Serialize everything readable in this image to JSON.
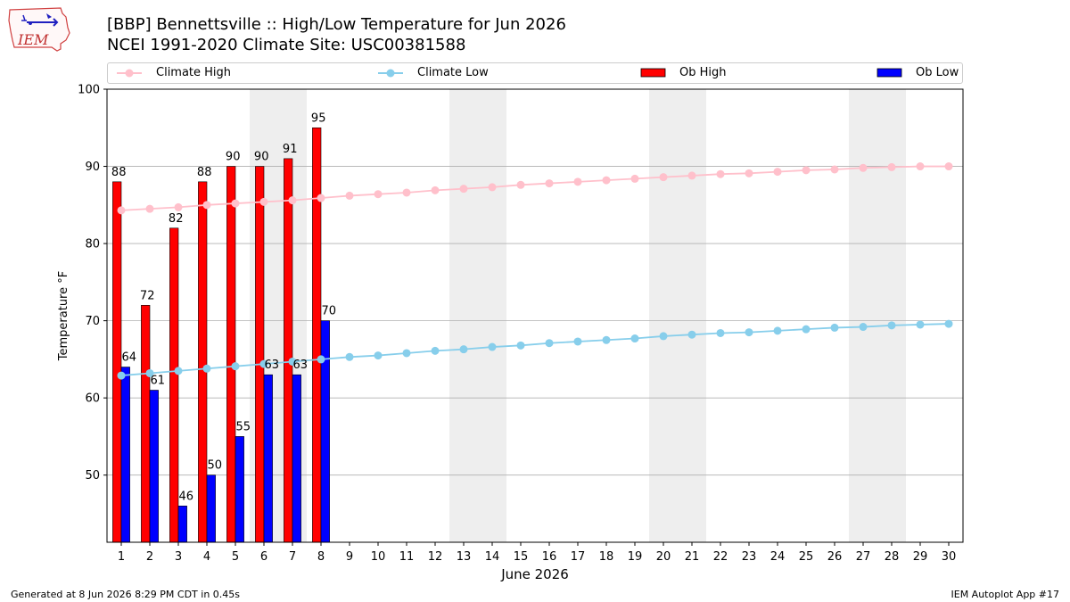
{
  "title": "[BBP] Bennettsville :: High/Low Temperature for Jun 2026",
  "subtitle": "NCEI 1991-2020 Climate Site: USC00381588",
  "logo_text": "IEM",
  "footer_left": "Generated at 8 Jun 2026 8:29 PM CDT in 0.45s",
  "footer_right": "IEM Autoplot App #17",
  "legend": {
    "climate_high": "Climate High",
    "climate_low": "Climate Low",
    "ob_high": "Ob High",
    "ob_low": "Ob Low"
  },
  "chart_data": {
    "type": "bar",
    "xlabel": "June 2026",
    "ylabel": "Temperature °F",
    "ylim": [
      41.3,
      100
    ],
    "xlim": [
      0.5,
      30.5
    ],
    "yticks": [
      50,
      60,
      70,
      80,
      90,
      100
    ],
    "days": [
      1,
      2,
      3,
      4,
      5,
      6,
      7,
      8,
      9,
      10,
      11,
      12,
      13,
      14,
      15,
      16,
      17,
      18,
      19,
      20,
      21,
      22,
      23,
      24,
      25,
      26,
      27,
      28,
      29,
      30
    ],
    "weekend_spans": [
      [
        5.5,
        7.5
      ],
      [
        12.5,
        14.5
      ],
      [
        19.5,
        21.5
      ],
      [
        26.5,
        28.5
      ]
    ],
    "grid": "horizontal",
    "legend_position": "top",
    "series": [
      {
        "name": "Ob High",
        "kind": "bar",
        "color": "#ff0000",
        "values": [
          88,
          72,
          82,
          88,
          90,
          90,
          91,
          95
        ]
      },
      {
        "name": "Ob Low",
        "kind": "bar",
        "color": "#0000ff",
        "values": [
          64,
          61,
          46,
          50,
          55,
          63,
          63,
          70
        ]
      },
      {
        "name": "Climate High",
        "kind": "line",
        "color": "#ffc0cb",
        "values": [
          84.3,
          84.5,
          84.7,
          85.0,
          85.2,
          85.4,
          85.6,
          85.9,
          86.2,
          86.4,
          86.6,
          86.9,
          87.1,
          87.3,
          87.6,
          87.8,
          88.0,
          88.2,
          88.4,
          88.6,
          88.8,
          89.0,
          89.1,
          89.3,
          89.5,
          89.6,
          89.8,
          89.9,
          90.0,
          90.0
        ]
      },
      {
        "name": "Climate Low",
        "kind": "line",
        "color": "#87ceeb",
        "values": [
          62.9,
          63.2,
          63.5,
          63.8,
          64.1,
          64.4,
          64.7,
          65.0,
          65.3,
          65.5,
          65.8,
          66.1,
          66.3,
          66.6,
          66.8,
          67.1,
          67.3,
          67.5,
          67.7,
          68.0,
          68.2,
          68.4,
          68.5,
          68.7,
          68.9,
          69.1,
          69.2,
          69.4,
          69.5,
          69.6
        ]
      }
    ]
  }
}
